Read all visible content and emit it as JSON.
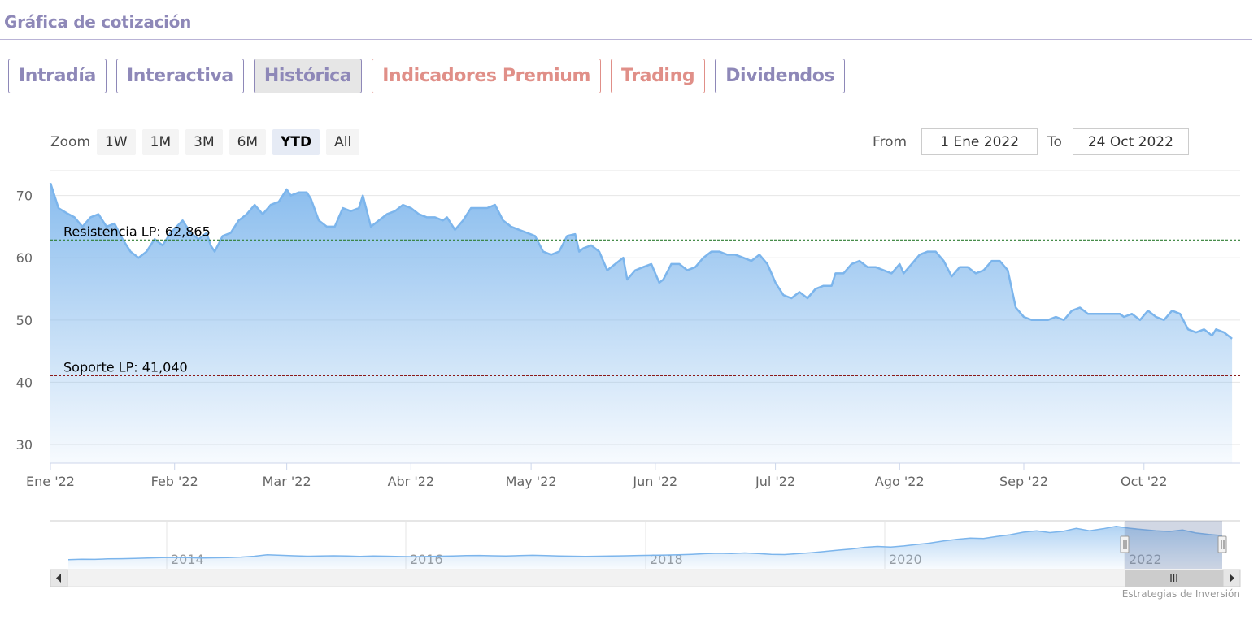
{
  "title": "Gráfica de cotización",
  "tabs": [
    {
      "label": "Intradía",
      "style": "default"
    },
    {
      "label": "Interactiva",
      "style": "default"
    },
    {
      "label": "Histórica",
      "style": "active"
    },
    {
      "label": "Indicadores Premium",
      "style": "red"
    },
    {
      "label": "Trading",
      "style": "red"
    },
    {
      "label": "Dividendos",
      "style": "default"
    }
  ],
  "zoom": {
    "label": "Zoom",
    "buttons": [
      "1W",
      "1M",
      "3M",
      "6M",
      "YTD",
      "All"
    ],
    "selected": "YTD"
  },
  "range": {
    "from_label": "From",
    "from_value": "1 Ene 2022",
    "to_label": "To",
    "to_value": "24 Oct 2022"
  },
  "credits": "Estrategias de Inversión",
  "colors": {
    "series": "#7cb5ec",
    "resistance": "#2e7d32",
    "support": "#8b1a1a",
    "tab_purple": "#8e88b8",
    "tab_red": "#e08f88"
  },
  "chart_data": {
    "type": "area",
    "ylim": [
      27,
      74
    ],
    "yticks": [
      30,
      40,
      50,
      60,
      70
    ],
    "xlim": [
      0,
      297
    ],
    "xticks": [
      {
        "label": "Ene '22",
        "day": 0
      },
      {
        "label": "Feb '22",
        "day": 31
      },
      {
        "label": "Mar '22",
        "day": 59
      },
      {
        "label": "Abr '22",
        "day": 90
      },
      {
        "label": "May '22",
        "day": 120
      },
      {
        "label": "Jun '22",
        "day": 151
      },
      {
        "label": "Jul '22",
        "day": 181
      },
      {
        "label": "Ago '22",
        "day": 212
      },
      {
        "label": "Sep '22",
        "day": 243
      },
      {
        "label": "Oct '22",
        "day": 273
      }
    ],
    "series": [
      {
        "values": [
          [
            0,
            72
          ],
          [
            2,
            68
          ],
          [
            4,
            67.2
          ],
          [
            6,
            66.5
          ],
          [
            8,
            65
          ],
          [
            10,
            66.5
          ],
          [
            12,
            67
          ],
          [
            14,
            65
          ],
          [
            16,
            65.5
          ],
          [
            18,
            63
          ],
          [
            20,
            61
          ],
          [
            22,
            60
          ],
          [
            24,
            61
          ],
          [
            26,
            63
          ],
          [
            28,
            62
          ],
          [
            30,
            64
          ],
          [
            33,
            66
          ],
          [
            35,
            64
          ],
          [
            37,
            63
          ],
          [
            39,
            64
          ],
          [
            40,
            62
          ],
          [
            41,
            61
          ],
          [
            43,
            63.5
          ],
          [
            45,
            64
          ],
          [
            47,
            66
          ],
          [
            49,
            67
          ],
          [
            51,
            68.5
          ],
          [
            53,
            67
          ],
          [
            55,
            68.5
          ],
          [
            57,
            69
          ],
          [
            59,
            71
          ],
          [
            60,
            70
          ],
          [
            62,
            70.5
          ],
          [
            64,
            70.5
          ],
          [
            65,
            69.5
          ],
          [
            67,
            66
          ],
          [
            69,
            65
          ],
          [
            71,
            65
          ],
          [
            73,
            68
          ],
          [
            75,
            67.5
          ],
          [
            77,
            68
          ],
          [
            78,
            70
          ],
          [
            80,
            65
          ],
          [
            82,
            66
          ],
          [
            84,
            67
          ],
          [
            86,
            67.5
          ],
          [
            88,
            68.5
          ],
          [
            90,
            68
          ],
          [
            92,
            67
          ],
          [
            94,
            66.5
          ],
          [
            96,
            66.5
          ],
          [
            98,
            66
          ],
          [
            99,
            66.5
          ],
          [
            101,
            64.5
          ],
          [
            103,
            66
          ],
          [
            105,
            68
          ],
          [
            107,
            68
          ],
          [
            109,
            68
          ],
          [
            111,
            68.5
          ],
          [
            113,
            66
          ],
          [
            115,
            65
          ],
          [
            117,
            64.5
          ],
          [
            119,
            64
          ],
          [
            121,
            63.5
          ],
          [
            123,
            61
          ],
          [
            125,
            60.5
          ],
          [
            127,
            61
          ],
          [
            129,
            63.5
          ],
          [
            131,
            63.8
          ],
          [
            132,
            61
          ],
          [
            133,
            61.5
          ],
          [
            135,
            62
          ],
          [
            137,
            61
          ],
          [
            139,
            58
          ],
          [
            141,
            59
          ],
          [
            143,
            60
          ],
          [
            144,
            56.5
          ],
          [
            146,
            58
          ],
          [
            148,
            58.5
          ],
          [
            150,
            59
          ],
          [
            152,
            56
          ],
          [
            153,
            56.5
          ],
          [
            155,
            59
          ],
          [
            157,
            59
          ],
          [
            159,
            58
          ],
          [
            161,
            58.5
          ],
          [
            163,
            60
          ],
          [
            165,
            61
          ],
          [
            167,
            61
          ],
          [
            169,
            60.5
          ],
          [
            171,
            60.5
          ],
          [
            173,
            60
          ],
          [
            175,
            59.5
          ],
          [
            177,
            60.5
          ],
          [
            179,
            59
          ],
          [
            181,
            56
          ],
          [
            183,
            54
          ],
          [
            185,
            53.5
          ],
          [
            187,
            54.5
          ],
          [
            189,
            53.5
          ],
          [
            191,
            55
          ],
          [
            193,
            55.5
          ],
          [
            195,
            55.5
          ],
          [
            196,
            57.5
          ],
          [
            198,
            57.5
          ],
          [
            200,
            59
          ],
          [
            202,
            59.5
          ],
          [
            204,
            58.5
          ],
          [
            206,
            58.5
          ],
          [
            208,
            58
          ],
          [
            210,
            57.5
          ],
          [
            212,
            59
          ],
          [
            213,
            57.5
          ],
          [
            215,
            59
          ],
          [
            217,
            60.5
          ],
          [
            219,
            61
          ],
          [
            221,
            61
          ],
          [
            223,
            59.5
          ],
          [
            225,
            57
          ],
          [
            227,
            58.5
          ],
          [
            229,
            58.5
          ],
          [
            231,
            57.5
          ],
          [
            233,
            58
          ],
          [
            235,
            59.5
          ],
          [
            237,
            59.5
          ],
          [
            239,
            58
          ],
          [
            241,
            52
          ],
          [
            243,
            50.5
          ],
          [
            245,
            50
          ],
          [
            247,
            50
          ],
          [
            249,
            50
          ],
          [
            251,
            50.5
          ],
          [
            253,
            50
          ],
          [
            255,
            51.5
          ],
          [
            257,
            52
          ],
          [
            259,
            51
          ],
          [
            261,
            51
          ],
          [
            263,
            51
          ],
          [
            265,
            51
          ],
          [
            267,
            51
          ],
          [
            268,
            50.5
          ],
          [
            270,
            51
          ],
          [
            272,
            50
          ],
          [
            274,
            51.5
          ],
          [
            276,
            50.5
          ],
          [
            278,
            50
          ],
          [
            280,
            51.5
          ],
          [
            282,
            51
          ],
          [
            284,
            48.5
          ],
          [
            286,
            48
          ],
          [
            288,
            48.5
          ],
          [
            290,
            47.5
          ],
          [
            291,
            48.5
          ],
          [
            293,
            48
          ],
          [
            295,
            47
          ]
        ]
      }
    ],
    "resistance": {
      "label": "Resistencia LP: 62,865",
      "value": 62.865
    },
    "support": {
      "label": "Soporte LP: 41,040",
      "value": 41.04
    },
    "navigator": {
      "year_labels": [
        "2014",
        "2016",
        "2018",
        "2020",
        "2022"
      ]
    }
  }
}
